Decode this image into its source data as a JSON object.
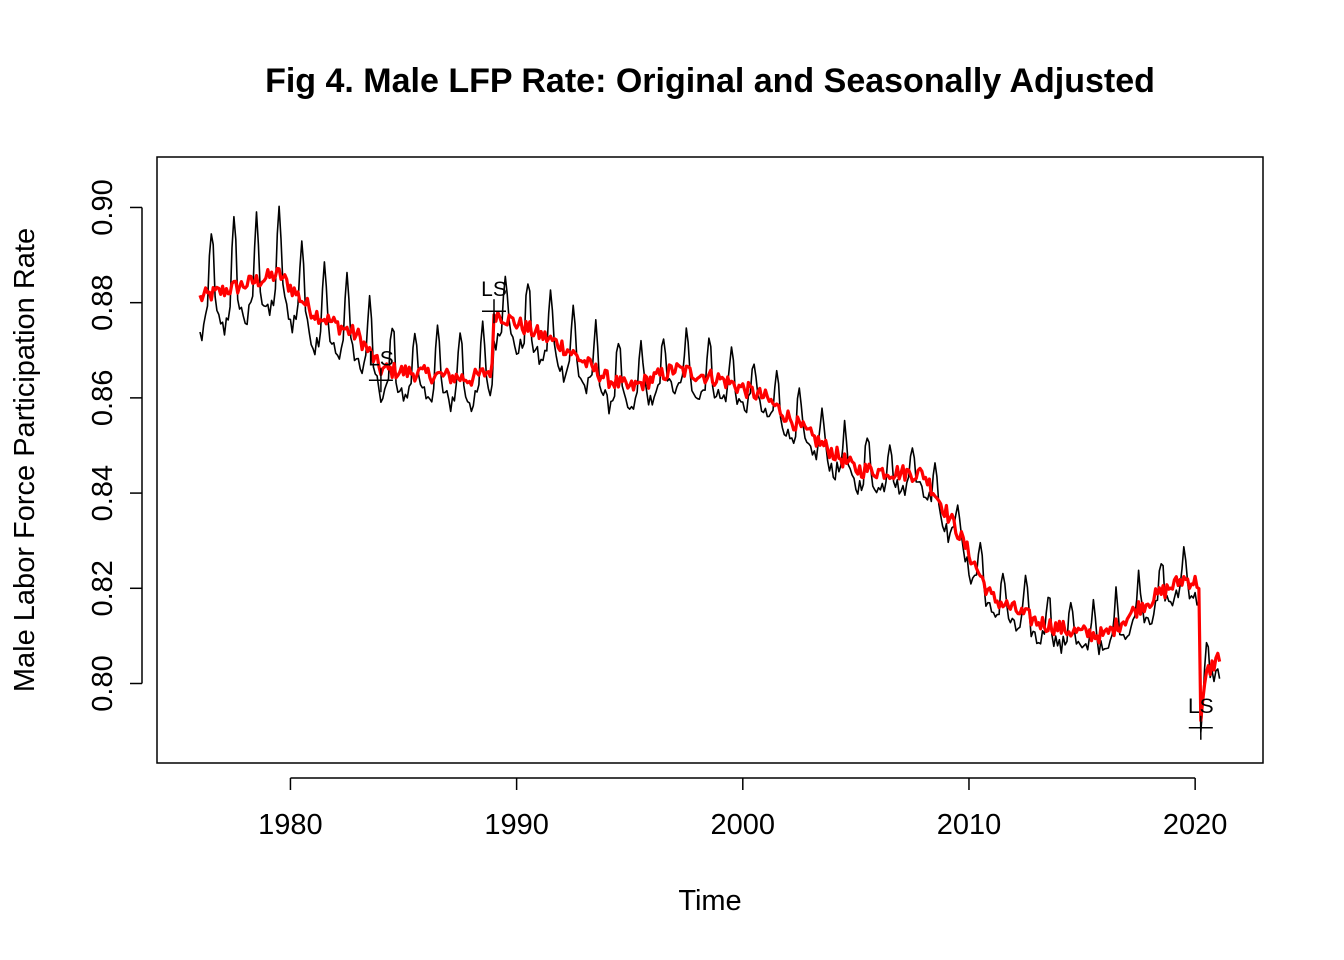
{
  "chart_data": {
    "type": "line",
    "title": "Fig 4. Male LFP Rate: Original and Seasonally Adjusted",
    "xlabel": "Time",
    "ylabel": "Male Labor Force Participation Rate",
    "xlim": [
      1974.1,
      2023.0
    ],
    "ylim": [
      0.7833,
      0.9106
    ],
    "x_ticks": [
      1980,
      1990,
      2000,
      2010,
      2020
    ],
    "y_ticks": [
      0.8,
      0.82,
      0.84,
      0.86,
      0.88,
      0.9
    ],
    "x_tick_labels": [
      "1980",
      "1990",
      "2000",
      "2010",
      "2020"
    ],
    "y_tick_labels": [
      "0.80",
      "0.82",
      "0.84",
      "0.86",
      "0.88",
      "0.90"
    ],
    "grid": false,
    "legend": "none",
    "series": [
      {
        "role": "original",
        "color": "#000000",
        "start": 1976.0,
        "frequency": 12,
        "trend": [
          [
            1976.0,
            0.881
          ],
          [
            1979.5,
            0.886
          ],
          [
            1981.0,
            0.878
          ],
          [
            1983.0,
            0.873
          ],
          [
            1984.0,
            0.866
          ],
          [
            1986.0,
            0.865
          ],
          [
            1988.0,
            0.864
          ],
          [
            1988.95,
            0.866
          ],
          [
            1989.0,
            0.878
          ],
          [
            1992.0,
            0.871
          ],
          [
            1994.0,
            0.864
          ],
          [
            1995.0,
            0.862
          ],
          [
            1997.0,
            0.866
          ],
          [
            1999.0,
            0.864
          ],
          [
            2001.0,
            0.86
          ],
          [
            2003.0,
            0.852
          ],
          [
            2005.0,
            0.845
          ],
          [
            2008.0,
            0.844
          ],
          [
            2009.5,
            0.832
          ],
          [
            2011.0,
            0.818
          ],
          [
            2013.0,
            0.813
          ],
          [
            2014.5,
            0.811
          ],
          [
            2016.0,
            0.81
          ],
          [
            2017.5,
            0.816
          ],
          [
            2019.5,
            0.822
          ],
          [
            2020.2,
            0.821
          ],
          [
            2020.25,
            0.792
          ],
          [
            2020.5,
            0.802
          ],
          [
            2021.1,
            0.806
          ]
        ],
        "seasonal_amplitude": [
          [
            1976.0,
            0.014
          ],
          [
            1980.0,
            0.013
          ],
          [
            1985.0,
            0.01
          ],
          [
            1990.0,
            0.01
          ],
          [
            1995.0,
            0.009
          ],
          [
            2000.0,
            0.007
          ],
          [
            2005.0,
            0.007
          ],
          [
            2010.0,
            0.007
          ],
          [
            2015.0,
            0.007
          ],
          [
            2021.1,
            0.006
          ]
        ]
      },
      {
        "role": "seasonally adjusted",
        "color": "#ff0000",
        "start": 1976.0,
        "frequency": 12,
        "trend": [
          [
            1976.0,
            0.881
          ],
          [
            1979.5,
            0.886
          ],
          [
            1981.0,
            0.878
          ],
          [
            1983.0,
            0.873
          ],
          [
            1984.0,
            0.866
          ],
          [
            1986.0,
            0.865
          ],
          [
            1988.0,
            0.864
          ],
          [
            1988.95,
            0.866
          ],
          [
            1989.0,
            0.878
          ],
          [
            1992.0,
            0.871
          ],
          [
            1994.0,
            0.864
          ],
          [
            1995.0,
            0.862
          ],
          [
            1997.0,
            0.866
          ],
          [
            1999.0,
            0.864
          ],
          [
            2001.0,
            0.86
          ],
          [
            2003.0,
            0.852
          ],
          [
            2005.0,
            0.845
          ],
          [
            2008.0,
            0.844
          ],
          [
            2009.5,
            0.832
          ],
          [
            2011.0,
            0.818
          ],
          [
            2013.0,
            0.813
          ],
          [
            2014.5,
            0.811
          ],
          [
            2016.0,
            0.81
          ],
          [
            2017.5,
            0.816
          ],
          [
            2019.5,
            0.822
          ],
          [
            2020.2,
            0.821
          ],
          [
            2020.25,
            0.792
          ],
          [
            2020.5,
            0.802
          ],
          [
            2021.1,
            0.806
          ]
        ]
      }
    ],
    "annotations": [
      {
        "text": "LS",
        "x": 1984.0,
        "y": 0.8637
      },
      {
        "text": "LS",
        "x": 1989.0,
        "y": 0.8782
      },
      {
        "text": "LS",
        "x": 2020.25,
        "y": 0.7907
      }
    ]
  }
}
